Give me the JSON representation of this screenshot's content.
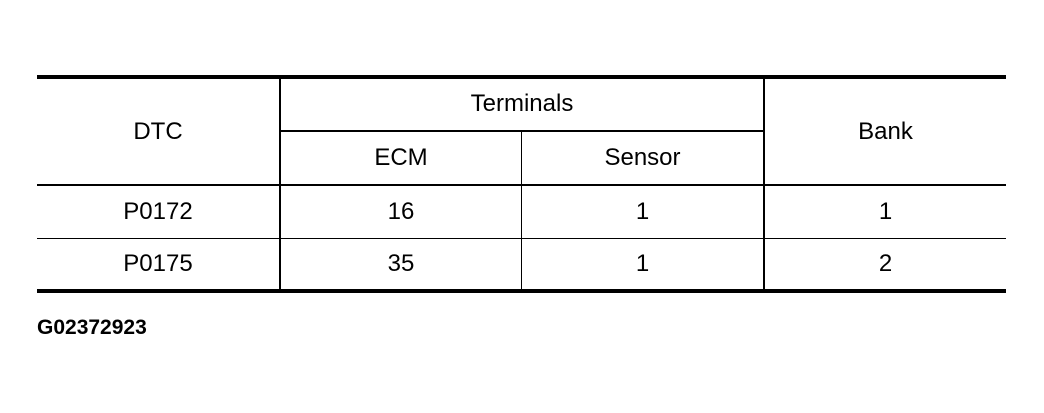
{
  "table": {
    "headers": {
      "dtc": "DTC",
      "terminals": "Terminals",
      "ecm": "ECM",
      "sensor": "Sensor",
      "bank": "Bank"
    },
    "rows": [
      {
        "dtc": "P0172",
        "ecm": "16",
        "sensor": "1",
        "bank": "1"
      },
      {
        "dtc": "P0175",
        "ecm": "35",
        "sensor": "1",
        "bank": "2"
      }
    ]
  },
  "caption": "G02372923"
}
